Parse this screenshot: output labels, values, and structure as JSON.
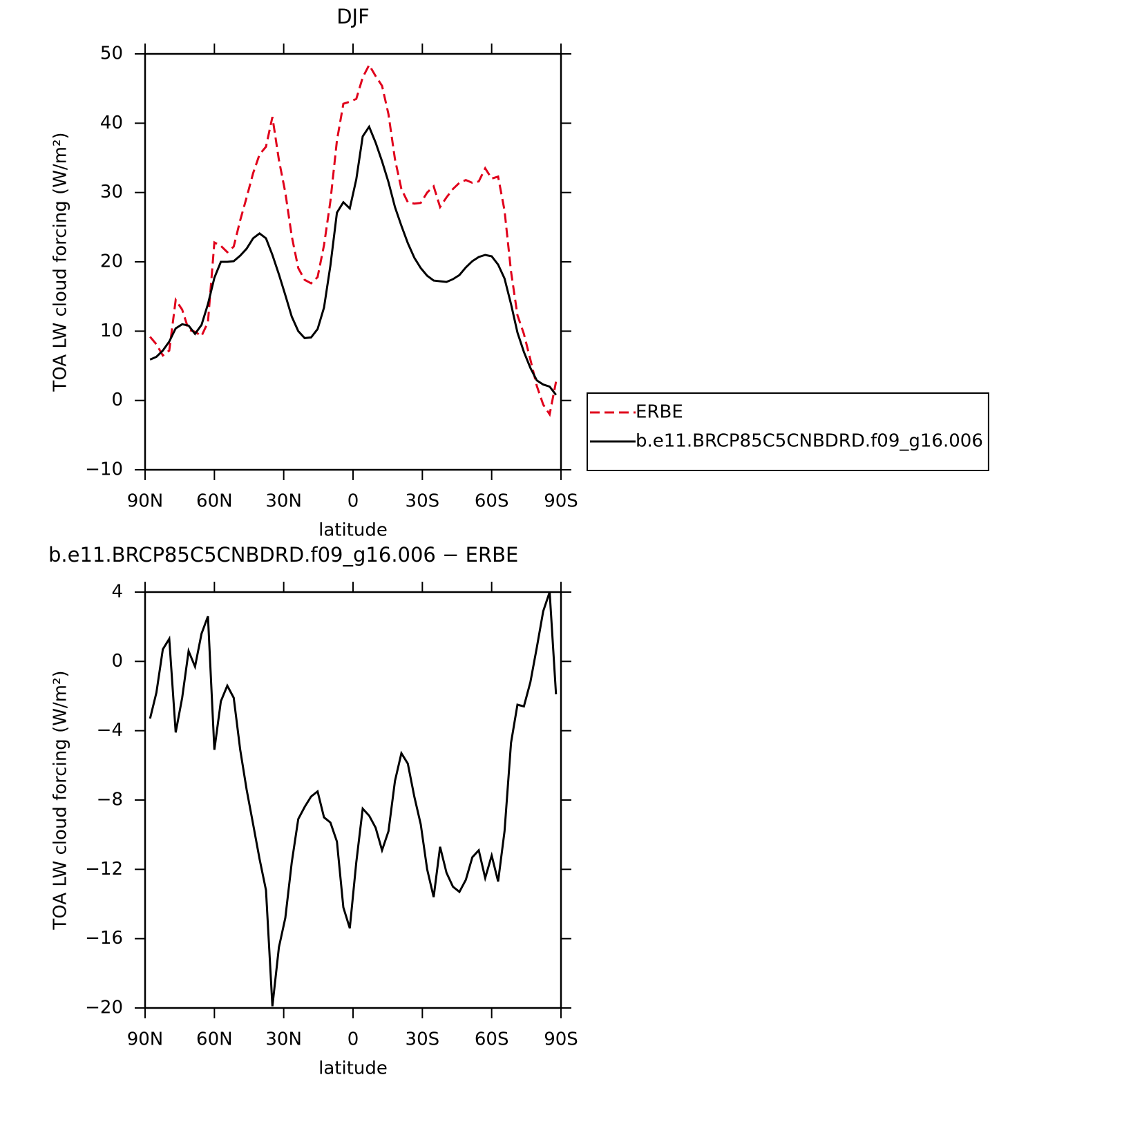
{
  "chart_data": [
    {
      "type": "line",
      "title": "DJF",
      "xlabel": "latitude",
      "ylabel": "TOA LW cloud forcing (W/m²)",
      "x": [
        87.86,
        85.1,
        82.31,
        79.53,
        76.74,
        73.95,
        71.16,
        68.37,
        65.58,
        62.79,
        60.0,
        57.21,
        54.42,
        51.63,
        48.84,
        46.04,
        43.25,
        40.46,
        37.67,
        34.88,
        32.09,
        29.3,
        26.51,
        23.72,
        20.93,
        18.14,
        15.35,
        12.56,
        9.77,
        6.98,
        4.19,
        1.4,
        -1.4,
        -4.19,
        -6.98,
        -9.77,
        -12.56,
        -15.35,
        -18.14,
        -20.93,
        -23.72,
        -26.51,
        -29.3,
        -32.09,
        -34.88,
        -37.67,
        -40.46,
        -43.25,
        -46.04,
        -48.84,
        -51.63,
        -54.42,
        -57.21,
        -60.0,
        -62.79,
        -65.58,
        -68.37,
        -71.16,
        -73.95,
        -76.74,
        -79.53,
        -82.31,
        -85.1,
        -87.86
      ],
      "series": [
        {
          "name": "ERBE",
          "color": "#e0001b",
          "line_style": "dashed",
          "values": [
            9.2,
            8.1,
            6.5,
            7.2,
            14.5,
            13.1,
            10.2,
            9.9,
            9.3,
            11.3,
            22.8,
            22.3,
            21.4,
            22.2,
            26.0,
            29.3,
            32.8,
            35.5,
            36.6,
            40.9,
            34.7,
            30.0,
            23.7,
            19.1,
            17.4,
            16.9,
            17.8,
            22.4,
            28.8,
            37.5,
            42.8,
            43.1,
            43.5,
            46.6,
            48.4,
            46.8,
            45.4,
            41.3,
            34.8,
            30.5,
            28.6,
            28.4,
            28.5,
            30.0,
            30.9,
            27.9,
            29.3,
            30.5,
            31.4,
            31.8,
            31.4,
            31.6,
            33.5,
            32.0,
            32.3,
            27.4,
            18.6,
            12.3,
            9.6,
            5.9,
            2.1,
            -0.6,
            -2.0,
            2.7
          ]
        },
        {
          "name": "b.e11.BRCP85C5CNBDRD.f09_g16.006",
          "color": "#000000",
          "line_style": "solid",
          "values": [
            5.9,
            6.3,
            7.2,
            8.5,
            10.4,
            11.0,
            10.8,
            9.6,
            10.9,
            13.9,
            17.7,
            20.0,
            20.0,
            20.1,
            20.9,
            21.9,
            23.4,
            24.1,
            23.4,
            21.0,
            18.2,
            15.2,
            12.1,
            10.0,
            9.0,
            9.1,
            10.3,
            13.4,
            19.5,
            27.1,
            28.6,
            27.7,
            31.9,
            38.1,
            39.5,
            37.2,
            34.5,
            31.5,
            27.9,
            25.2,
            22.7,
            20.6,
            19.1,
            18.0,
            17.3,
            17.2,
            17.1,
            17.5,
            18.1,
            19.2,
            20.1,
            20.7,
            21.0,
            20.8,
            19.6,
            17.6,
            13.9,
            9.8,
            7.0,
            4.7,
            2.9,
            2.3,
            2.0,
            0.8
          ]
        }
      ],
      "xlim": [
        90,
        -90
      ],
      "xticks": [
        {
          "value": 90,
          "label": "90N"
        },
        {
          "value": 60,
          "label": "60N"
        },
        {
          "value": 30,
          "label": "30N"
        },
        0,
        {
          "value": -30,
          "label": "30S"
        },
        {
          "value": -60,
          "label": "60S"
        },
        {
          "value": -90,
          "label": "90S"
        }
      ],
      "ylim": [
        -10,
        50
      ],
      "yticks": [
        {
          "value": -10,
          "label": "−10"
        },
        0,
        10,
        20,
        30,
        40,
        50
      ],
      "legend": "right"
    },
    {
      "type": "line",
      "title": "b.e11.BRCP85C5CNBDRD.f09_g16.006 − ERBE",
      "xlabel": "latitude",
      "ylabel": "TOA LW cloud forcing (W/m²)",
      "x": [
        87.86,
        85.1,
        82.31,
        79.53,
        76.74,
        73.95,
        71.16,
        68.37,
        65.58,
        62.79,
        60.0,
        57.21,
        54.42,
        51.63,
        48.84,
        46.04,
        43.25,
        40.46,
        37.67,
        34.88,
        32.09,
        29.3,
        26.51,
        23.72,
        20.93,
        18.14,
        15.35,
        12.56,
        9.77,
        6.98,
        4.19,
        1.4,
        -1.4,
        -4.19,
        -6.98,
        -9.77,
        -12.56,
        -15.35,
        -18.14,
        -20.93,
        -23.72,
        -26.51,
        -29.3,
        -32.09,
        -34.88,
        -37.67,
        -40.46,
        -43.25,
        -46.04,
        -48.84,
        -51.63,
        -54.42,
        -57.21,
        -60.0,
        -62.79,
        -65.58,
        -68.37,
        -71.16,
        -73.95,
        -76.74,
        -79.53,
        -82.31,
        -85.1,
        -87.86
      ],
      "values": [
        -3.3,
        -1.8,
        0.7,
        1.3,
        -4.1,
        -2.1,
        0.6,
        -0.3,
        1.6,
        2.6,
        -5.1,
        -2.3,
        -1.4,
        -2.1,
        -5.1,
        -7.4,
        -9.4,
        -11.4,
        -13.2,
        -19.9,
        -16.5,
        -14.8,
        -11.6,
        -9.1,
        -8.4,
        -7.8,
        -7.5,
        -9.0,
        -9.3,
        -10.4,
        -14.2,
        -15.4,
        -11.6,
        -8.5,
        -8.9,
        -9.6,
        -10.9,
        -9.8,
        -6.9,
        -5.3,
        -5.9,
        -7.8,
        -9.4,
        -12.0,
        -13.6,
        -10.7,
        -12.2,
        -13.0,
        -13.3,
        -12.6,
        -11.3,
        -10.9,
        -12.5,
        -11.2,
        -12.7,
        -9.8,
        -4.7,
        -2.5,
        -2.6,
        -1.2,
        0.8,
        2.9,
        4.0,
        -1.9
      ],
      "color": "#000000",
      "xlim": [
        90,
        -90
      ],
      "xticks": [
        {
          "value": 90,
          "label": "90N"
        },
        {
          "value": 60,
          "label": "60N"
        },
        {
          "value": 30,
          "label": "30N"
        },
        0,
        {
          "value": -30,
          "label": "30S"
        },
        {
          "value": -60,
          "label": "60S"
        },
        {
          "value": -90,
          "label": "90S"
        }
      ],
      "ylim": [
        -20,
        4
      ],
      "yticks": [
        {
          "value": -20,
          "label": "−20"
        },
        {
          "value": -16,
          "label": "−16"
        },
        {
          "value": -12,
          "label": "−12"
        },
        {
          "value": -8,
          "label": "−8"
        },
        {
          "value": -4,
          "label": "−4"
        },
        0,
        4
      ]
    }
  ]
}
